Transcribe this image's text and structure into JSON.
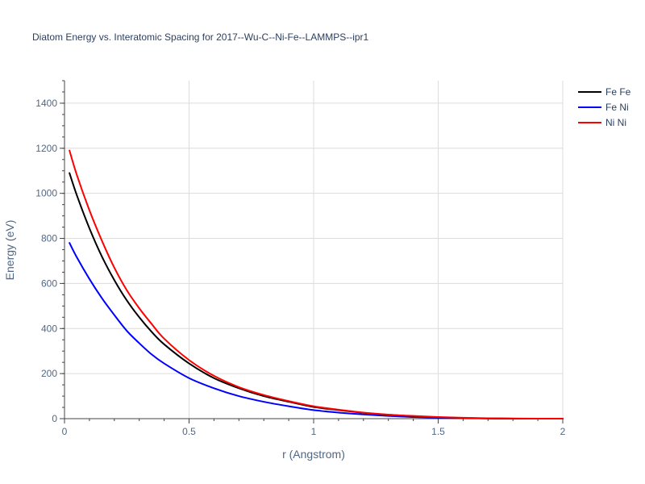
{
  "chart_data": {
    "type": "line",
    "title": "Diatom Energy vs. Interatomic Spacing for 2017--Wu-C--Ni-Fe--LAMMPS--ipr1",
    "xlabel": "r (Angstrom)",
    "ylabel": "Energy (eV)",
    "xlim": [
      0,
      2
    ],
    "ylim": [
      0,
      1500
    ],
    "x_ticks": [
      0,
      0.5,
      1,
      1.5,
      2
    ],
    "x_tick_labels": [
      "0",
      "0.5",
      "1",
      "1.5",
      "2"
    ],
    "y_ticks": [
      0,
      200,
      400,
      600,
      800,
      1000,
      1200,
      1400
    ],
    "y_tick_labels": [
      "0",
      "200",
      "400",
      "600",
      "800",
      "1000",
      "1200",
      "1400"
    ],
    "grid": true,
    "legend_position": "top-right",
    "x": [
      0.02,
      0.05,
      0.1,
      0.15,
      0.2,
      0.25,
      0.3,
      0.35,
      0.4,
      0.5,
      0.6,
      0.7,
      0.8,
      0.9,
      1.0,
      1.1,
      1.2,
      1.3,
      1.4,
      1.5,
      1.6,
      1.7,
      1.8,
      1.9,
      2.0
    ],
    "series": [
      {
        "name": "Fe Fe",
        "color": "#000000",
        "values": [
          1090,
          990,
          845,
          720,
          615,
          525,
          450,
          385,
          330,
          245,
          180,
          135,
          100,
          75,
          52,
          38,
          26,
          17,
          11,
          6,
          3,
          1,
          0,
          0,
          0
        ]
      },
      {
        "name": "Fe Ni",
        "color": "#0000ff",
        "values": [
          780,
          715,
          620,
          535,
          460,
          390,
          335,
          285,
          245,
          180,
          135,
          100,
          75,
          55,
          38,
          27,
          19,
          12,
          7,
          4,
          2,
          1,
          0,
          0,
          0
        ]
      },
      {
        "name": "Ni Ni",
        "color": "#ff0000",
        "values": [
          1190,
          1080,
          925,
          790,
          670,
          570,
          490,
          420,
          355,
          260,
          190,
          140,
          105,
          78,
          55,
          40,
          27,
          18,
          12,
          7,
          4,
          2,
          1,
          0,
          0
        ]
      }
    ]
  }
}
